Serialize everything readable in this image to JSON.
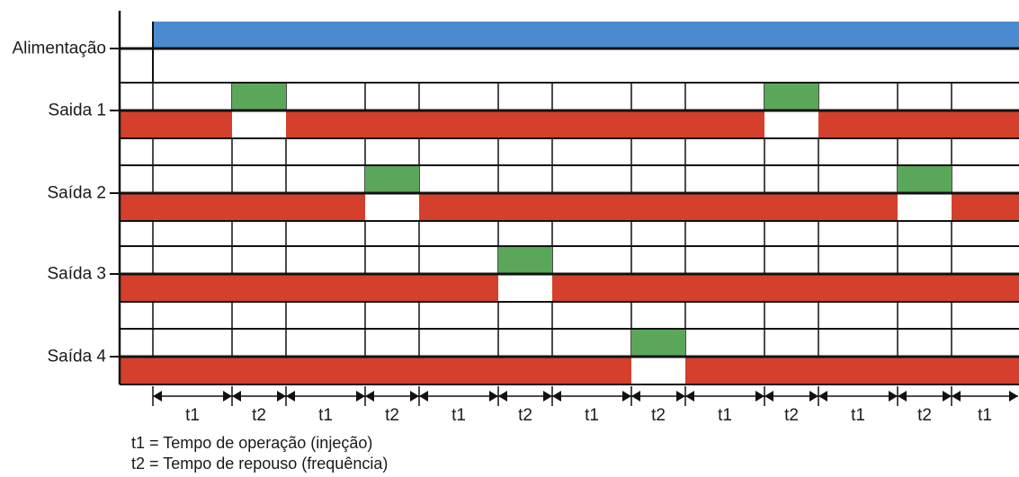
{
  "colors": {
    "power_bar": "#4a8ad0",
    "active": "#5aa75a",
    "rest": "#d4402c",
    "line": "#111111"
  },
  "rows": [
    {
      "label": "Alimentação",
      "kind": "power"
    },
    {
      "label": "Saida 1",
      "kind": "output",
      "active_slot": [
        1,
        9
      ]
    },
    {
      "label": "Saída 2",
      "kind": "output",
      "active_slot": [
        3,
        11
      ]
    },
    {
      "label": "Saída 3",
      "kind": "output",
      "active_slot": [
        5
      ]
    },
    {
      "label": "Saída 4",
      "kind": "output",
      "active_slot": [
        7
      ]
    }
  ],
  "periods": [
    "t1",
    "t2",
    "t1",
    "t2",
    "t1",
    "t2",
    "t1",
    "t2",
    "t1",
    "t2",
    "t1",
    "t2",
    "t1"
  ],
  "legend": {
    "t1": "t1 = Tempo de operação (injeção)",
    "t2": "t2 = Tempo de repouso (frequência)"
  }
}
